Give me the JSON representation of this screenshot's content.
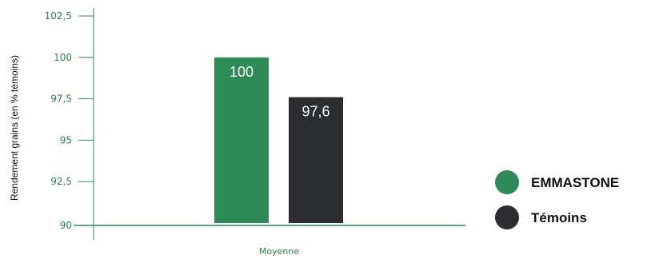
{
  "chart_data": {
    "type": "bar",
    "title": "",
    "ylabel": "Rendement grains (en %  témoins)",
    "xlabel": "",
    "categories": [
      "Moyenne"
    ],
    "series": [
      {
        "name": "EMMASTONE",
        "values": [
          100
        ],
        "labels": [
          "100"
        ],
        "color": "#2e8b57"
      },
      {
        "name": "Témoins",
        "values": [
          97.6
        ],
        "labels": [
          "97,6"
        ],
        "color": "#2b2d30"
      }
    ],
    "ylim": [
      90,
      102.5
    ],
    "yticks": [
      90,
      92.5,
      95,
      97.5,
      100,
      102.5
    ],
    "ytick_labels": [
      "90",
      "92,5",
      "95",
      "97,5",
      "100",
      "102,5"
    ],
    "legend_position": "right",
    "grid": false,
    "axis_color": "#2e8b57"
  }
}
